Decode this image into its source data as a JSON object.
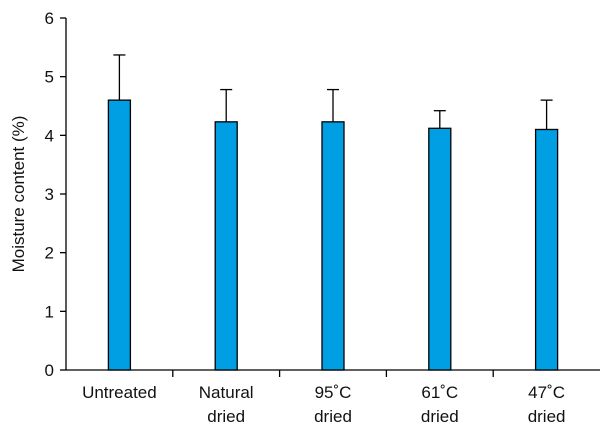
{
  "chart_data": {
    "type": "bar",
    "title": "",
    "xlabel": "",
    "ylabel": "Moisture content (%)",
    "ylim": [
      0,
      6
    ],
    "yticks": [
      0,
      1,
      2,
      3,
      4,
      5,
      6
    ],
    "grid": false,
    "categories": [
      [
        "Untreated"
      ],
      [
        "Natural",
        "dried"
      ],
      [
        "95˚C",
        "dried"
      ],
      [
        "61˚C",
        "dried"
      ],
      [
        "47˚C",
        "dried"
      ]
    ],
    "values": [
      4.6,
      4.23,
      4.23,
      4.12,
      4.1
    ],
    "errors": [
      0.77,
      0.55,
      0.55,
      0.3,
      0.5
    ],
    "bar_color": "#009fe3",
    "error_bars": "upper only"
  }
}
